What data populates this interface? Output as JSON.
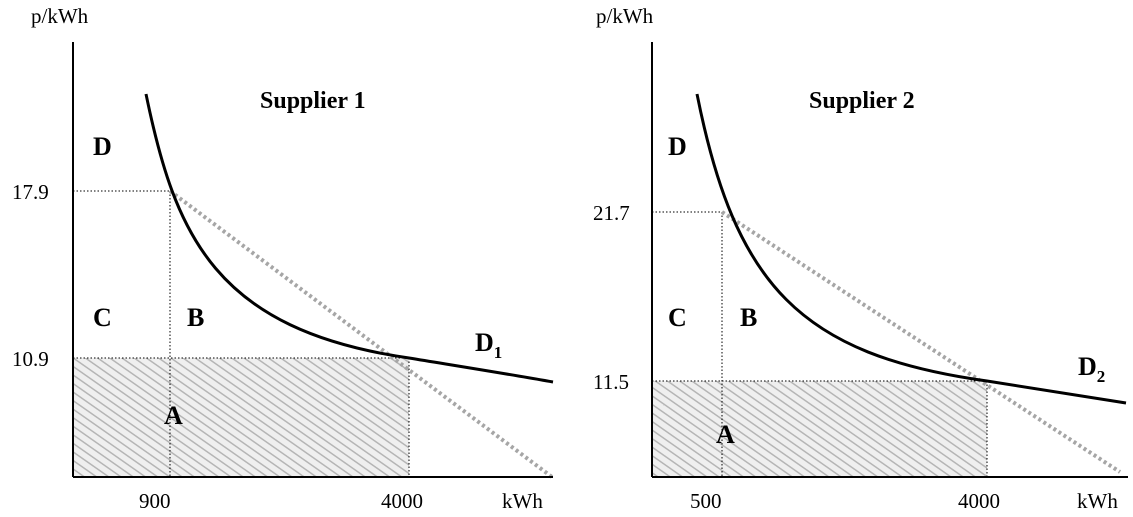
{
  "chart_data": [
    {
      "type": "line",
      "title": "Supplier 1",
      "ylabel": "p/kWh",
      "xlabel": "kWh",
      "x_ticks": [
        900,
        4000
      ],
      "y_ticks": [
        10.9,
        17.9
      ],
      "x_tick_labels": [
        "900",
        "4000"
      ],
      "y_tick_labels": [
        "10.9",
        "17.9"
      ],
      "series": [
        {
          "name": "D",
          "subscript": "1",
          "style": "solid-curve",
          "points": [
            [
              900,
              17.9
            ],
            [
              4000,
              10.9
            ]
          ]
        },
        {
          "style": "dotted-line",
          "points": [
            [
              900,
              17.9
            ],
            [
              4000,
              10.9
            ]
          ]
        }
      ],
      "region_labels": [
        "D",
        "C",
        "B",
        "A"
      ],
      "shaded_region": {
        "x": [
          0,
          4000
        ],
        "y": [
          0,
          10.9
        ]
      },
      "colors": {
        "curve": "#000000",
        "dotted": "#a6a6a6",
        "hatch": "#b5b5b5"
      }
    },
    {
      "type": "line",
      "title": "Supplier 2",
      "ylabel": "p/kWh",
      "xlabel": "kWh",
      "x_ticks": [
        500,
        4000
      ],
      "y_ticks": [
        11.5,
        21.7
      ],
      "x_tick_labels": [
        "500",
        "4000"
      ],
      "y_tick_labels": [
        "11.5",
        "21.7"
      ],
      "series": [
        {
          "name": "D",
          "subscript": "2",
          "style": "solid-curve",
          "points": [
            [
              500,
              21.7
            ],
            [
              4000,
              11.5
            ]
          ]
        },
        {
          "style": "dotted-line",
          "points": [
            [
              500,
              21.7
            ],
            [
              4000,
              11.5
            ]
          ]
        }
      ],
      "region_labels": [
        "D",
        "C",
        "B",
        "A"
      ],
      "shaded_region": {
        "x": [
          0,
          4000
        ],
        "y": [
          0,
          11.5
        ]
      },
      "colors": {
        "curve": "#000000",
        "dotted": "#a6a6a6",
        "hatch": "#b5b5b5"
      }
    }
  ]
}
